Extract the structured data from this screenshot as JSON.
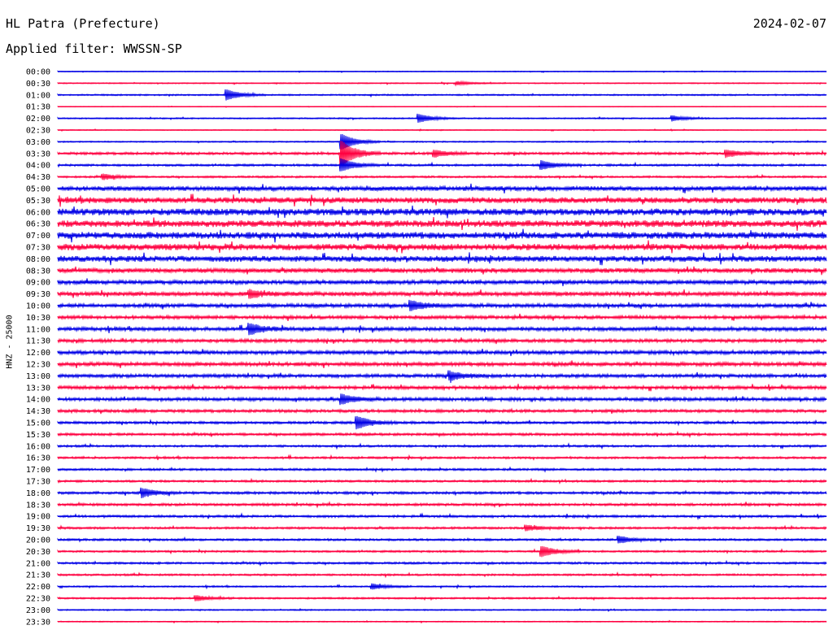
{
  "header": {
    "station": "HL Patra (Prefecture)",
    "date": "2024-02-07",
    "filter": "Applied filter: WWSSN-SP"
  },
  "chart_data": {
    "type": "line",
    "title": "HL Patra (Prefecture)",
    "ylabel": "HNZ - 25000",
    "colors": [
      "#0000e6",
      "#ff0040"
    ],
    "row_labels": [
      "00:00",
      "00:30",
      "01:00",
      "01:30",
      "02:00",
      "02:30",
      "03:00",
      "03:30",
      "04:00",
      "04:30",
      "05:00",
      "05:30",
      "06:00",
      "06:30",
      "07:00",
      "07:30",
      "08:00",
      "08:30",
      "09:00",
      "09:30",
      "10:00",
      "10:30",
      "11:00",
      "11:30",
      "12:00",
      "12:30",
      "13:00",
      "13:30",
      "14:00",
      "14:30",
      "15:00",
      "15:30",
      "16:00",
      "16:30",
      "17:00",
      "17:30",
      "18:00",
      "18:30",
      "19:00",
      "19:30",
      "20:00",
      "20:30",
      "21:00",
      "21:30",
      "22:00",
      "22:30",
      "23:00",
      "23:30"
    ],
    "noise_amplitude": [
      0.4,
      0.5,
      0.7,
      0.3,
      0.6,
      0.4,
      0.6,
      1.2,
      1.0,
      0.9,
      2.2,
      2.8,
      3.2,
      3.2,
      3.2,
      3.0,
      2.8,
      2.2,
      2.0,
      2.0,
      1.8,
      1.6,
      1.8,
      1.6,
      1.8,
      1.8,
      1.6,
      1.6,
      1.6,
      1.4,
      1.2,
      1.2,
      1.0,
      1.0,
      1.0,
      1.0,
      1.2,
      1.2,
      1.1,
      1.0,
      1.0,
      0.9,
      1.0,
      0.9,
      0.7,
      0.8,
      0.6,
      0.5
    ],
    "events": [
      {
        "row": 1,
        "t": 0.52,
        "amp": 2
      },
      {
        "row": 2,
        "t": 0.22,
        "amp": 6
      },
      {
        "row": 4,
        "t": 0.47,
        "amp": 5
      },
      {
        "row": 4,
        "t": 0.8,
        "amp": 3
      },
      {
        "row": 6,
        "t": 0.37,
        "amp": 9
      },
      {
        "row": 7,
        "t": 0.37,
        "amp": 14
      },
      {
        "row": 7,
        "t": 0.49,
        "amp": 4
      },
      {
        "row": 7,
        "t": 0.87,
        "amp": 4
      },
      {
        "row": 8,
        "t": 0.37,
        "amp": 7
      },
      {
        "row": 8,
        "t": 0.63,
        "amp": 5
      },
      {
        "row": 9,
        "t": 0.06,
        "amp": 3
      },
      {
        "row": 19,
        "t": 0.25,
        "amp": 4
      },
      {
        "row": 20,
        "t": 0.46,
        "amp": 5
      },
      {
        "row": 22,
        "t": 0.25,
        "amp": 6
      },
      {
        "row": 26,
        "t": 0.51,
        "amp": 5
      },
      {
        "row": 28,
        "t": 0.37,
        "amp": 5
      },
      {
        "row": 30,
        "t": 0.39,
        "amp": 7
      },
      {
        "row": 36,
        "t": 0.11,
        "amp": 5
      },
      {
        "row": 39,
        "t": 0.61,
        "amp": 3
      },
      {
        "row": 40,
        "t": 0.73,
        "amp": 4
      },
      {
        "row": 41,
        "t": 0.63,
        "amp": 6
      },
      {
        "row": 44,
        "t": 0.41,
        "amp": 3
      },
      {
        "row": 45,
        "t": 0.18,
        "amp": 3
      }
    ]
  }
}
